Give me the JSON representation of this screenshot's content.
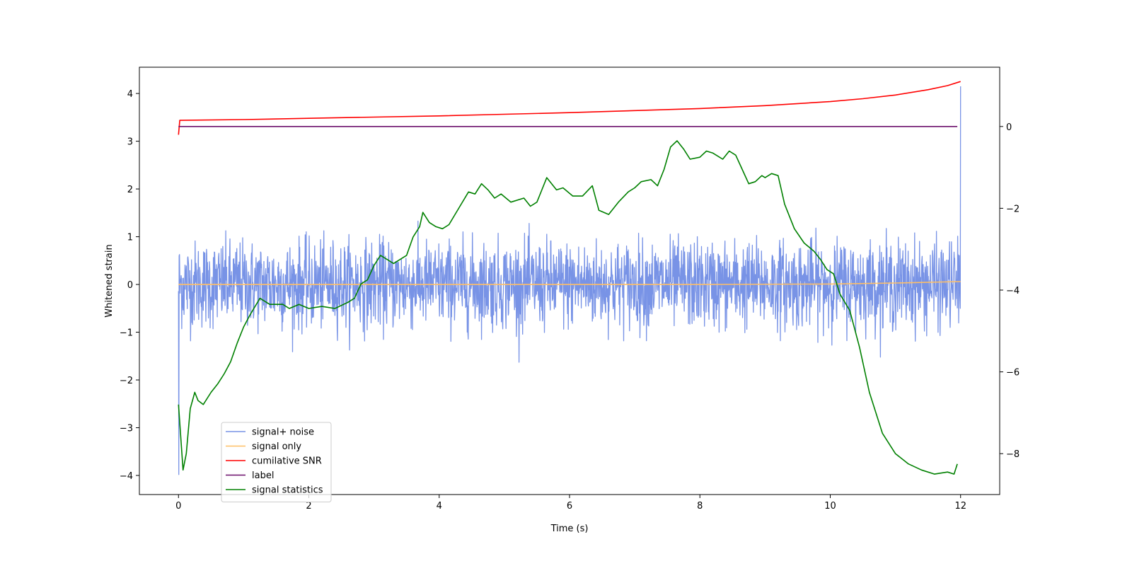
{
  "chart_data": {
    "type": "line",
    "title": "",
    "xlabel": "Time (s)",
    "ylabel": "Whitened strain",
    "ylabel_right": "",
    "xlim": [
      -0.6,
      12.6
    ],
    "ylim": [
      -4.4,
      4.55
    ],
    "ylim_right": [
      -9.0,
      1.45
    ],
    "xticks": [
      0,
      2,
      4,
      6,
      8,
      10,
      12
    ],
    "yticks": [
      -4,
      -3,
      -2,
      -1,
      0,
      1,
      2,
      3,
      4
    ],
    "yticks_right": [
      -8,
      -6,
      -4,
      -2,
      0
    ],
    "grid": false,
    "legend_position": "lower-left",
    "series": [
      {
        "name": "signal+ noise",
        "axis": "left",
        "color": "#7893e6",
        "x_range": [
          0,
          12
        ],
        "samples": 2400,
        "amplitude_range": [
          -4.0,
          4.15
        ],
        "note_values": {
          "start_min": -3.98,
          "end_max": 4.15,
          "typical_peak": 1.4
        }
      },
      {
        "name": "signal only",
        "axis": "left",
        "color": "#ffbf66",
        "x": [
          0,
          2,
          4,
          6,
          8,
          10,
          11,
          12
        ],
        "values": [
          0,
          0,
          0,
          0,
          0,
          0.01,
          0.03,
          0.06
        ]
      },
      {
        "name": "cumilative SNR",
        "axis": "right",
        "color": "#ff0000",
        "x": [
          0,
          0.02,
          1,
          2,
          3,
          4,
          5,
          6,
          7,
          8,
          9,
          10,
          10.5,
          11,
          11.5,
          11.8,
          12
        ],
        "values": [
          -0.2,
          0.15,
          0.17,
          0.2,
          0.23,
          0.26,
          0.3,
          0.34,
          0.39,
          0.44,
          0.51,
          0.61,
          0.68,
          0.77,
          0.9,
          1.0,
          1.1
        ]
      },
      {
        "name": "label",
        "axis": "right",
        "color": "#6b0f6b",
        "x": [
          0,
          11.95
        ],
        "values": [
          0,
          0
        ]
      },
      {
        "name": "signal statistics",
        "axis": "right",
        "color": "#008000",
        "x": [
          0,
          0.07,
          0.12,
          0.18,
          0.25,
          0.3,
          0.38,
          0.5,
          0.6,
          0.7,
          0.8,
          0.9,
          1.0,
          1.1,
          1.25,
          1.4,
          1.6,
          1.7,
          1.85,
          2.0,
          2.2,
          2.4,
          2.6,
          2.7,
          2.8,
          2.9,
          3.0,
          3.1,
          3.2,
          3.3,
          3.4,
          3.5,
          3.6,
          3.7,
          3.75,
          3.85,
          3.95,
          4.05,
          4.15,
          4.3,
          4.45,
          4.55,
          4.65,
          4.75,
          4.85,
          4.95,
          5.1,
          5.3,
          5.4,
          5.5,
          5.65,
          5.8,
          5.9,
          6.05,
          6.2,
          6.35,
          6.45,
          6.6,
          6.75,
          6.9,
          7.0,
          7.1,
          7.25,
          7.35,
          7.45,
          7.55,
          7.65,
          7.75,
          7.85,
          8.0,
          8.1,
          8.2,
          8.35,
          8.45,
          8.55,
          8.65,
          8.75,
          8.85,
          8.95,
          9.0,
          9.1,
          9.2,
          9.3,
          9.45,
          9.6,
          9.75,
          9.85,
          9.95,
          10.05,
          10.15,
          10.3,
          10.45,
          10.6,
          10.8,
          11.0,
          11.2,
          11.4,
          11.6,
          11.8,
          11.9,
          11.95
        ],
        "values": [
          -6.8,
          -8.4,
          -8.0,
          -6.9,
          -6.5,
          -6.7,
          -6.8,
          -6.5,
          -6.3,
          -6.05,
          -5.75,
          -5.3,
          -4.9,
          -4.6,
          -4.2,
          -4.35,
          -4.35,
          -4.45,
          -4.35,
          -4.45,
          -4.4,
          -4.45,
          -4.3,
          -4.2,
          -3.85,
          -3.75,
          -3.4,
          -3.15,
          -3.25,
          -3.35,
          -3.25,
          -3.15,
          -2.7,
          -2.45,
          -2.1,
          -2.35,
          -2.45,
          -2.5,
          -2.4,
          -2.0,
          -1.6,
          -1.65,
          -1.4,
          -1.55,
          -1.75,
          -1.65,
          -1.85,
          -1.75,
          -1.95,
          -1.85,
          -1.25,
          -1.55,
          -1.5,
          -1.7,
          -1.7,
          -1.45,
          -2.05,
          -2.15,
          -1.85,
          -1.6,
          -1.5,
          -1.35,
          -1.3,
          -1.45,
          -1.05,
          -0.5,
          -0.35,
          -0.55,
          -0.8,
          -0.75,
          -0.6,
          -0.65,
          -0.8,
          -0.6,
          -0.7,
          -1.05,
          -1.4,
          -1.35,
          -1.2,
          -1.25,
          -1.15,
          -1.2,
          -1.9,
          -2.5,
          -2.85,
          -3.05,
          -3.25,
          -3.5,
          -3.6,
          -4.1,
          -4.5,
          -5.4,
          -6.5,
          -7.5,
          -8.0,
          -8.25,
          -8.4,
          -8.5,
          -8.45,
          -8.5,
          -8.25
        ]
      }
    ]
  }
}
